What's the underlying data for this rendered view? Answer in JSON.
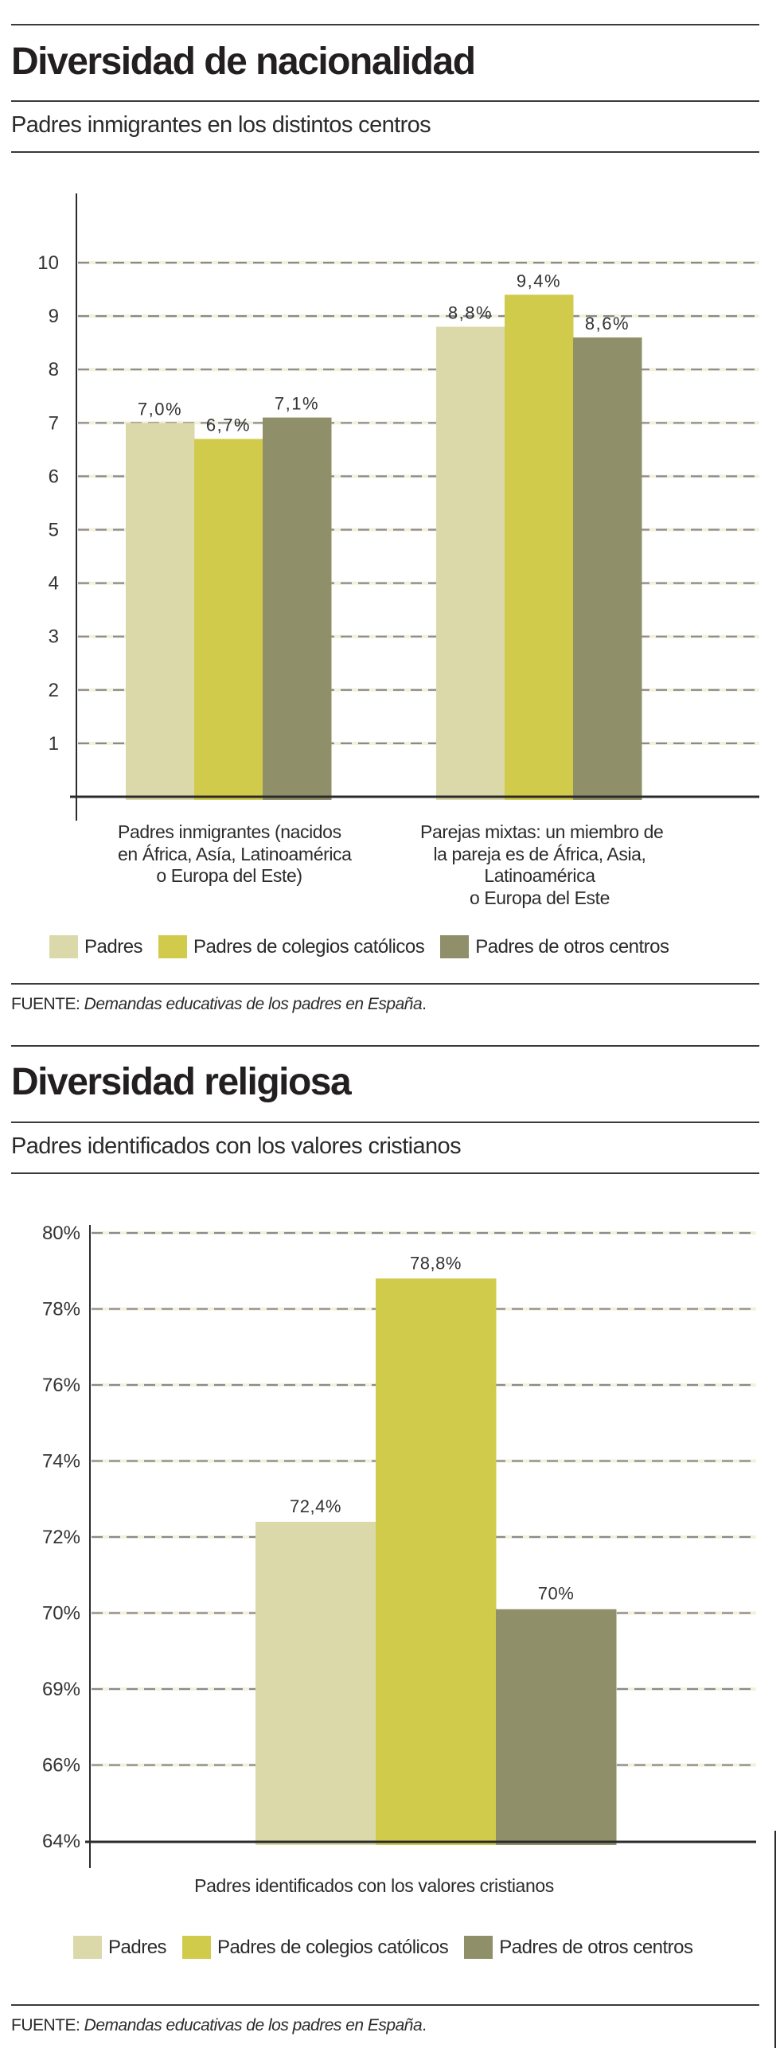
{
  "colors": {
    "padres": "#dbd9a9",
    "catolicos": "#d1cb4c",
    "otros": "#8f8f69",
    "grid": "#8a8a8e",
    "axis": "#2b2b2b"
  },
  "legend": [
    {
      "key": "padres",
      "label": "Padres"
    },
    {
      "key": "catolicos",
      "label": "Padres de colegios católicos"
    },
    {
      "key": "otros",
      "label": "Padres de otros centros"
    }
  ],
  "section1": {
    "title": "Diversidad de nacionalidad",
    "subtitle": "Padres inmigrantes en los distintos centros",
    "source_prefix": "FUENTE: ",
    "source_title": "Demandas educativas de los padres en España",
    "source_suffix": "."
  },
  "section2": {
    "title": "Diversidad religiosa",
    "subtitle": "Padres identificados con los valores cristianos",
    "source_prefix": "FUENTE: ",
    "source_title": "Demandas educativas de los padres en España",
    "source_suffix": "."
  },
  "chart_data": [
    {
      "type": "bar",
      "title": "Padres inmigrantes en los distintos centros",
      "xlabel": "",
      "ylabel": "",
      "ylim": [
        0,
        10
      ],
      "yticks": [
        1,
        2,
        3,
        4,
        5,
        6,
        7,
        8,
        9,
        10
      ],
      "ytick_labels": [
        "1",
        "2",
        "3",
        "4",
        "5",
        "6",
        "7",
        "8",
        "9",
        "10"
      ],
      "grid": true,
      "legend_position": "bottom",
      "categories": [
        [
          "Padres inmigrantes (nacidos",
          "en África, Asía, Latinoamérica",
          "o Europa del Este)"
        ],
        [
          "Parejas mixtas: un miembro de",
          "la pareja es de África, Asia,",
          "Latinoamérica",
          "o Europa del Este"
        ]
      ],
      "series": [
        {
          "name": "Padres",
          "values": [
            7.0,
            8.8
          ],
          "labels": [
            "7,0%",
            "8,8%"
          ]
        },
        {
          "name": "Padres de colegios católicos",
          "values": [
            6.7,
            9.4
          ],
          "labels": [
            "6,7%",
            "9,4%"
          ]
        },
        {
          "name": "Padres de otros centros",
          "values": [
            7.1,
            8.6
          ],
          "labels": [
            "7,1%",
            "8,6%"
          ]
        }
      ]
    },
    {
      "type": "bar",
      "title": "Padres identificados con los valores cristianos",
      "xlabel": "",
      "ylabel": "",
      "ylim": [
        64,
        80
      ],
      "yticks": [
        64,
        66,
        69,
        70,
        72,
        74,
        76,
        78,
        80
      ],
      "ytick_labels": [
        "64%",
        "66%",
        "69%",
        "70%",
        "72%",
        "74%",
        "76%",
        "78%",
        "80%"
      ],
      "grid": true,
      "legend_position": "bottom",
      "categories": [
        [
          "Padres identificados con los valores cristianos"
        ]
      ],
      "series": [
        {
          "name": "Padres",
          "values": [
            72.4
          ],
          "labels": [
            "72,4%"
          ]
        },
        {
          "name": "Padres de colegios católicos",
          "values": [
            78.8
          ],
          "labels": [
            "78,8%"
          ]
        },
        {
          "name": "Padres de otros centros",
          "values": [
            70.1
          ],
          "labels": [
            "70%"
          ]
        }
      ]
    }
  ]
}
